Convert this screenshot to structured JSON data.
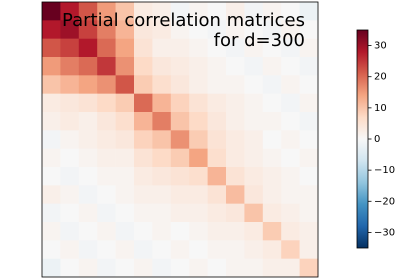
{
  "chart_data": {
    "type": "heatmap",
    "title": [
      "Partial correlation matrices",
      "for d=300"
    ],
    "clim": [
      -35,
      35
    ],
    "colormap": [
      "#053061",
      "#2166ac",
      "#4393c3",
      "#92c5de",
      "#d1e5f0",
      "#f7f7f7",
      "#fddbc7",
      "#f4a582",
      "#d6604d",
      "#b2182b",
      "#67001f"
    ],
    "colorbar_ticks": [
      {
        "value": -30,
        "label": "−30"
      },
      {
        "value": -20,
        "label": "−20"
      },
      {
        "value": -10,
        "label": "−10"
      },
      0,
      10,
      20,
      30
    ],
    "matrix": [
      [
        35,
        28,
        22,
        15,
        10,
        3,
        2,
        -1,
        1,
        0,
        2,
        -1,
        1,
        0,
        -2
      ],
      [
        28,
        30,
        24,
        18,
        12,
        4,
        3,
        1,
        0,
        -1,
        1,
        0,
        -1,
        1,
        0
      ],
      [
        22,
        24,
        28,
        20,
        14,
        5,
        2,
        2,
        1,
        0,
        -1,
        1,
        0,
        -1,
        1
      ],
      [
        15,
        18,
        20,
        25,
        16,
        7,
        4,
        3,
        2,
        1,
        0,
        -1,
        1,
        0,
        -1
      ],
      [
        10,
        12,
        14,
        16,
        22,
        9,
        6,
        4,
        2,
        1,
        1,
        0,
        -1,
        1,
        0
      ],
      [
        3,
        4,
        5,
        7,
        9,
        20,
        12,
        8,
        5,
        3,
        2,
        1,
        0,
        -1,
        1
      ],
      [
        2,
        3,
        2,
        4,
        6,
        12,
        18,
        10,
        7,
        4,
        2,
        1,
        1,
        0,
        -1
      ],
      [
        -1,
        1,
        2,
        3,
        4,
        8,
        10,
        16,
        9,
        5,
        3,
        2,
        0,
        1,
        0
      ],
      [
        1,
        0,
        1,
        2,
        2,
        5,
        7,
        9,
        14,
        6,
        3,
        2,
        1,
        0,
        1
      ],
      [
        0,
        -1,
        0,
        1,
        1,
        3,
        4,
        5,
        6,
        12,
        5,
        3,
        2,
        1,
        0
      ],
      [
        2,
        1,
        -1,
        0,
        1,
        2,
        2,
        3,
        3,
        5,
        11,
        4,
        2,
        1,
        1
      ],
      [
        -1,
        0,
        1,
        -1,
        0,
        1,
        1,
        2,
        2,
        3,
        4,
        10,
        3,
        2,
        1
      ],
      [
        1,
        -1,
        0,
        1,
        -1,
        0,
        1,
        0,
        1,
        2,
        2,
        3,
        9,
        3,
        2
      ],
      [
        0,
        1,
        -1,
        0,
        1,
        -1,
        0,
        1,
        0,
        1,
        1,
        2,
        3,
        8,
        2
      ],
      [
        -2,
        0,
        1,
        -1,
        0,
        1,
        -1,
        0,
        1,
        0,
        1,
        1,
        2,
        2,
        8
      ]
    ]
  }
}
